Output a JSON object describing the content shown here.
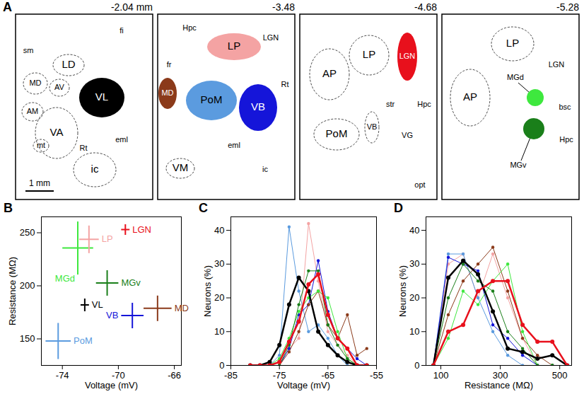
{
  "diagram": {
    "panel": "A",
    "scale_bar": "1 mm",
    "sections": [
      {
        "label": "-2.04 mm",
        "regions": [
          {
            "label": "sm"
          },
          {
            "label": "fi"
          },
          {
            "label": "LD"
          },
          {
            "label": "MD"
          },
          {
            "label": "AV"
          },
          {
            "label": "VL",
            "color": "#000000"
          },
          {
            "label": "AM"
          },
          {
            "label": "VA"
          },
          {
            "label": "mt"
          },
          {
            "label": "Rt"
          },
          {
            "label": "eml"
          },
          {
            "label": "ic"
          }
        ]
      },
      {
        "label": "-3.48",
        "regions": [
          {
            "label": "Hpc"
          },
          {
            "label": "LP",
            "color": "#f4a3a3"
          },
          {
            "label": "LGN"
          },
          {
            "label": "fr"
          },
          {
            "label": "MD",
            "color": "#8b3a1a"
          },
          {
            "label": "PoM",
            "color": "#5b9bdf"
          },
          {
            "label": "VB",
            "color": "#1515d9"
          },
          {
            "label": "Rt"
          },
          {
            "label": "eml"
          },
          {
            "label": "VM"
          },
          {
            "label": "ic"
          }
        ]
      },
      {
        "label": "-4.68",
        "regions": [
          {
            "label": "AP"
          },
          {
            "label": "LP"
          },
          {
            "label": "LGN",
            "color": "#e8101c"
          },
          {
            "label": "PoM"
          },
          {
            "label": "VB"
          },
          {
            "label": "str"
          },
          {
            "label": "VG"
          },
          {
            "label": "Hpc"
          },
          {
            "label": "opt"
          }
        ]
      },
      {
        "label": "-5.28",
        "regions": [
          {
            "label": "LP"
          },
          {
            "label": "LGN"
          },
          {
            "label": "AP"
          },
          {
            "label": "MGd",
            "color": "#3ee83e"
          },
          {
            "label": "bsc"
          },
          {
            "label": "Hpc"
          },
          {
            "label": "MGv",
            "color": "#1a7f1a"
          }
        ]
      }
    ]
  },
  "chart_data": [
    {
      "panel": "B",
      "type": "scatter",
      "x_label": "Voltage (mV)",
      "y_label": "Resistance (MΩ)",
      "xlim": [
        -75.5,
        -65.5
      ],
      "xticks": [
        -74,
        -70,
        -66
      ],
      "ylim": [
        125,
        265
      ],
      "yticks": [
        150,
        200,
        250
      ],
      "series": [
        {
          "name": "VL",
          "color": "#000000",
          "x": [
            -72.4
          ],
          "values": [
            182
          ],
          "x_error": [
            0.3
          ],
          "y_error": [
            6
          ]
        },
        {
          "name": "MD",
          "color": "#8b3a1a",
          "x": [
            -67.2
          ],
          "values": [
            178.8
          ],
          "x_error": [
            1.0
          ],
          "y_error": [
            12
          ]
        },
        {
          "name": "LP",
          "color": "#f4a3a3",
          "x": [
            -72.1
          ],
          "values": [
            243.8
          ],
          "x_error": [
            0.7
          ],
          "y_error": [
            13
          ]
        },
        {
          "name": "PoM",
          "color": "#5b9bdf",
          "x": [
            -74.3
          ],
          "values": [
            148
          ],
          "x_error": [
            0.9
          ],
          "y_error": [
            17
          ]
        },
        {
          "name": "VB",
          "color": "#1515d9",
          "x": [
            -69.0
          ],
          "values": [
            172
          ],
          "x_error": [
            0.8
          ],
          "y_error": [
            12
          ]
        },
        {
          "name": "LGN",
          "color": "#e8101c",
          "x": [
            -69.5
          ],
          "values": [
            253
          ],
          "x_error": [
            0.3
          ],
          "y_error": [
            5
          ]
        },
        {
          "name": "MGd",
          "color": "#3ee83e",
          "x": [
            -72.9
          ],
          "values": [
            235.6
          ],
          "x_error": [
            1.1
          ],
          "y_error": [
            25
          ]
        },
        {
          "name": "MGv",
          "color": "#1a7f1a",
          "x": [
            -70.8
          ],
          "values": [
            202.7
          ],
          "x_error": [
            0.8
          ],
          "y_error": [
            12
          ]
        }
      ]
    },
    {
      "panel": "C",
      "type": "line",
      "x_label": "Voltage (mV)",
      "y_label": "Neurons (%)",
      "xlim": [
        -85,
        -55
      ],
      "xticks": [
        -85,
        -75,
        -65,
        -55
      ],
      "ylim": [
        0,
        44
      ],
      "yticks": [
        0,
        10,
        20,
        30,
        40
      ],
      "x": [
        -81,
        -79,
        -77,
        -75,
        -73,
        -71,
        -69,
        -67,
        -65,
        -63,
        -61,
        -59,
        -57
      ],
      "series": [
        {
          "color": "#f4a3a3",
          "line_style": "thin",
          "values": [
            0,
            0,
            0,
            0,
            5,
            8,
            42,
            25,
            10,
            6,
            3,
            0,
            0
          ]
        },
        {
          "color": "#5b9bdf",
          "line_style": "thin",
          "values": [
            0,
            0,
            0,
            3,
            41,
            22,
            10,
            12,
            8,
            3,
            0,
            0,
            0
          ]
        },
        {
          "color": "#1515d9",
          "line_style": "thin",
          "values": [
            0,
            0,
            0,
            0,
            5,
            15,
            18,
            31,
            16,
            8,
            5,
            2,
            0
          ]
        },
        {
          "color": "#8b3a1a",
          "line_style": "thin",
          "values": [
            0,
            0,
            0,
            0,
            4,
            10,
            18,
            22,
            12,
            8,
            15,
            3,
            5
          ]
        },
        {
          "color": "#3ee83e",
          "line_style": "thin",
          "values": [
            0,
            0,
            0,
            2,
            8,
            16,
            20,
            22,
            20,
            10,
            2,
            0,
            0
          ]
        },
        {
          "color": "#1a7f1a",
          "line_style": "thin",
          "values": [
            0,
            0,
            0,
            0,
            6,
            18,
            28,
            28,
            12,
            6,
            2,
            0,
            0
          ]
        },
        {
          "color": "#000000",
          "line_style": "thick",
          "values": [
            0,
            0,
            1,
            6,
            18,
            26,
            22,
            10,
            6,
            3,
            1,
            0,
            0
          ]
        },
        {
          "color": "#e8101c",
          "line_style": "thick",
          "values": [
            0,
            0,
            0,
            1,
            7,
            13,
            24,
            27,
            15,
            8,
            5,
            0,
            0
          ]
        }
      ]
    },
    {
      "panel": "D",
      "type": "line",
      "x_label": "Resistance (MΩ)",
      "y_label": "Neurons (%)",
      "xlim": [
        50,
        540
      ],
      "xticks": [
        100,
        300,
        500
      ],
      "ylim": [
        0,
        44
      ],
      "yticks": [
        0,
        10,
        20,
        30,
        40
      ],
      "x": [
        75,
        125,
        175,
        225,
        275,
        325,
        375,
        425,
        475,
        525
      ],
      "series": [
        {
          "color": "#f4a3a3",
          "line_style": "thin",
          "values": [
            0,
            30,
            33,
            20,
            33,
            20,
            8,
            0,
            0,
            0
          ]
        },
        {
          "color": "#5b9bdf",
          "line_style": "thin",
          "values": [
            0,
            33,
            33,
            20,
            10,
            3,
            0,
            0,
            0,
            0
          ]
        },
        {
          "color": "#1515d9",
          "line_style": "thin",
          "values": [
            0,
            32,
            30,
            28,
            12,
            8,
            3,
            0,
            0,
            0
          ]
        },
        {
          "color": "#8b3a1a",
          "line_style": "thin",
          "values": [
            0,
            15,
            25,
            30,
            35,
            22,
            8,
            3,
            0,
            0
          ]
        },
        {
          "color": "#3ee83e",
          "line_style": "thin",
          "values": [
            0,
            8,
            22,
            18,
            25,
            30,
            10,
            0,
            0,
            0
          ]
        },
        {
          "color": "#1a7f1a",
          "line_style": "thin",
          "values": [
            0,
            20,
            30,
            25,
            22,
            10,
            5,
            0,
            0,
            0
          ]
        },
        {
          "color": "#000000",
          "line_style": "thick",
          "values": [
            0,
            26,
            31,
            27,
            16,
            5,
            4,
            2,
            3,
            0
          ]
        },
        {
          "color": "#e8101c",
          "line_style": "thick",
          "values": [
            0,
            10,
            12,
            22,
            25,
            25,
            12,
            7,
            7,
            0
          ]
        }
      ]
    }
  ]
}
